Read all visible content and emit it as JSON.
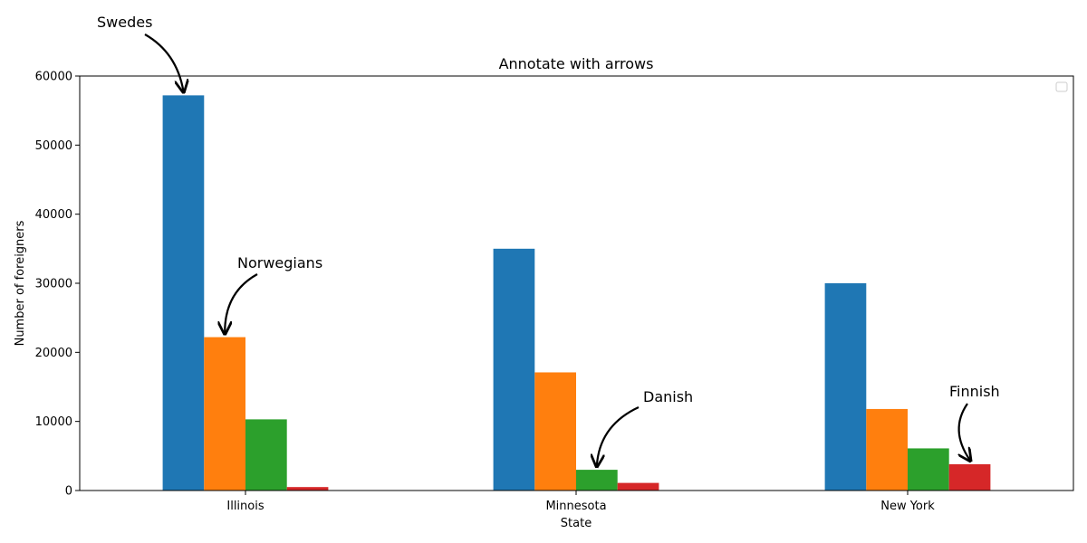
{
  "chart_data": {
    "type": "bar",
    "title": "Annotate with arrows",
    "xlabel": "State",
    "ylabel": "Number of foreigners",
    "categories": [
      "Illinois",
      "Minnesota",
      "New York"
    ],
    "ylim": [
      0,
      60000
    ],
    "yticks": [
      0,
      10000,
      20000,
      30000,
      40000,
      50000,
      60000
    ],
    "grid": false,
    "legend": "top-right (empty)",
    "series": [
      {
        "color": "#1f77b4",
        "values": [
          57200,
          35000,
          30000
        ]
      },
      {
        "color": "#ff7f0e",
        "values": [
          22200,
          17100,
          11800
        ]
      },
      {
        "color": "#2ca02c",
        "values": [
          10300,
          3000,
          6100
        ]
      },
      {
        "color": "#d62728",
        "values": [
          500,
          1100,
          3800
        ]
      }
    ],
    "annotations": [
      {
        "text": "Swedes",
        "category": "Illinois",
        "series": 0
      },
      {
        "text": "Norwegians",
        "category": "Illinois",
        "series": 1
      },
      {
        "text": "Danish",
        "category": "Minnesota",
        "series": 2
      },
      {
        "text": "Finnish",
        "category": "New York",
        "series": 3
      }
    ]
  }
}
